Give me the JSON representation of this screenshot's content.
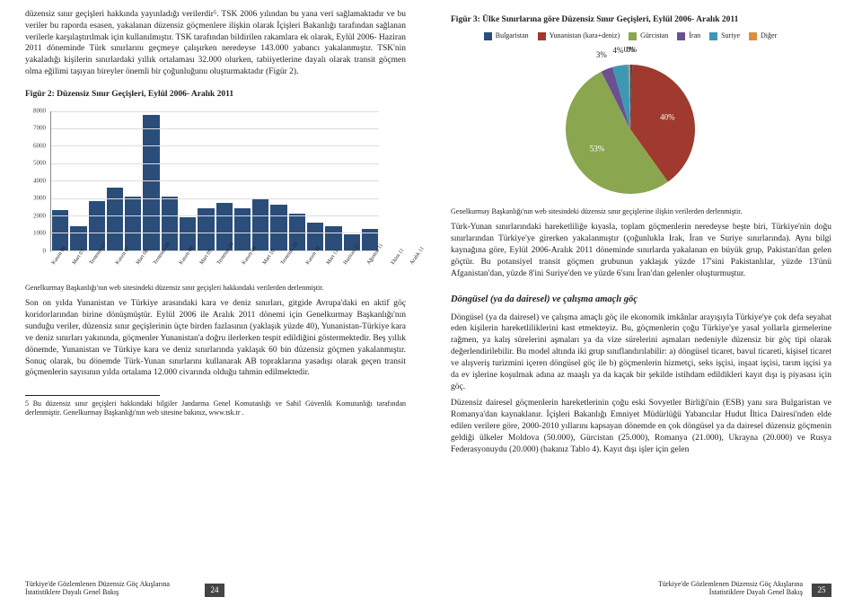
{
  "left": {
    "intro": "düzensiz sınır geçişleri hakkında yayınladığı verilerdir⁵. TSK 2006 yılından bu yana veri sağlamaktadır ve bu veriler bu raporda esasen, yakalanan düzensiz göçmenlere ilişkin olarak İçişleri Bakanlığı tarafından sağlanan verilerle karşılaştırılmak için kullanılmıştır. TSK tarafından bildirilen rakamlara ek olarak, Eylül 2006- Haziran 2011 döneminde Türk sınırlarını geçmeye çalışırken neredeyse 143.000 yabancı yakalanmıştır. TSK'nin yakaladığı kişilerin sınırlardaki yıllık ortalaması 32.000 olurken, tabiiyetlerine dayalı olarak transit göçmen olma eğilimi taşıyan bireyler önemli bir çoğunluğunu oluşturmaktadır (Figür 2).",
    "fig2_title": "Figür 2: Düzensiz Sınır Geçişleri, Eylül 2006- Aralık 2011",
    "chart_caption": "Genelkurmay Başkanlığı'nın web sitesindeki düzensiz sınır geçişleri hakkındaki verilerden derlenmiştir.",
    "para2": "Son on yılda Yunanistan ve Türkiye arasındaki kara ve deniz sınırları, gitgide Avrupa'daki en aktif göç koridorlarından birine dönüşmüştür. Eylül 2006 ile Aralık 2011 dönemi için Genelkurmay Başkanlığı'nın sunduğu veriler, düzensiz sınır geçişlerinin üçte birden fazlasının (yaklaşık yüzde 40), Yunanistan-Türkiye kara ve deniz sınırları yakınında, göçmenler Yunanistan'a doğru ilerlerken tespit edildiğini göstermektedir. Beş yıllık dönemde, Yunanistan ve Türkiye kara ve deniz sınırlarında yaklaşık 60 bin düzensiz göçmen yakalanmıştır. Sonuç olarak, bu dönemde Türk-Yunan sınırlarını kullanarak AB topraklarına yasadışı olarak geçen transit göçmenlerin sayısının yılda ortalama 12.000 civarında olduğu tahmin edilmektedir.",
    "footnote": "5 Bu düzensiz sınır geçişleri hakkındaki bilgiler Jandarma Genel Komutanlığı ve Sahil Güvenlik Komutanlığı tarafından derlenmiştir. Genelkurmay Başkanlığı'nın web sitesine bakınız, www.tsk.tr .",
    "footer_title": "Türkiye'de Gözlemlenen Düzensiz Göç Akışlarına İstatistiklere Dayalı Genel Bakış",
    "page_num": "24"
  },
  "right": {
    "fig3_title": "Figür 3: Ülke Sınırlarına göre Düzensiz Sınır Geçişleri, Eylül 2006- Aralık 2011",
    "pie_caption": "Genelkurmay Başkanlığı'nın web sitesindeki düzensiz sınır geçişlerine ilişkin verilerden derlenmiştir.",
    "para1": "Türk-Yunan sınırlarındaki hareketliliğe kıyasla, toplam göçmenlerin neredeyse beşte biri, Türkiye'nin doğu sınırlarından Türkiye'ye girerken yakalanmıştır (çoğunlukla Irak, İran ve Suriye sınırlarında). Aynı bilgi kaynağına göre, Eylül 2006-Aralık 2011 döneminde sınırlarda yakalanan en büyük grup, Pakistan'dan gelen göçtür. Bu potansiyel transit göçmen grubunun yaklaşık yüzde 17'sini Pakistanlılar, yüzde 13'ünü Afganistan'dan, yüzde 8'ini Suriye'den ve yüzde 6'sını İran'dan gelenler oluşturmuştur.",
    "section": "Döngüsel (ya da dairesel) ve çalışma amaçlı göç",
    "para2": "Döngüsel (ya da dairesel) ve çalışma amaçlı göç ile ekonomik imkânlar arayışıyla Türkiye'ye çok defa seyahat eden kişilerin hareketliliklerini kast etmekteyiz. Bu, göçmenlerin çoğu Türkiye'ye yasal yollarla girmelerine rağmen, ya kalış sürelerini aşmaları ya da vize sürelerini aşmaları nedeniyle düzensiz bir göç tipi olarak değerlendirilebilir. Bu model altında iki grup sınıflandırılabilir: a) döngüsel ticaret, bavul ticareti, kişisel ticaret ve alışveriş turizmini içeren döngüsel göç ile b) göçmenlerin hizmetçi, seks işçisi, inşaat işçisi, tarım işçisi ya da ev işlerine koşulmak adına az maaşlı ya da kaçak bir şekilde istihdam edildikleri kayıt dışı iş piyasası için göç.",
    "para3": "Düzensiz dairesel göçmenlerin hareketlerinin çoğu eski Sovyetler Birliği'nin (ESB) yanı sıra Bulgaristan ve Romanya'dan kaynaklanır. İçişleri Bakanlığı Emniyet Müdürlüğü Yabancılar Hudut İltica Dairesi'nden elde edilen verilere göre, 2000-2010 yıllarını kapsayan dönemde en çok döngüsel ya da dairesel düzensiz göçmenin geldiği ülkeler Moldova (50.000), Gürcistan (25.000), Romanya (21.000), Ukrayna (20.000) ve Rusya Federasyonuydu (20.000) (bakınız Tablo 4). Kayıt dışı işler için gelen",
    "footer_title": "Türkiye'de Gözlemlenen Düzensiz Göç Akışlarına İstatistiklere Dayalı Genel Bakış",
    "page_num": "25"
  },
  "bar_chart": {
    "type": "bar",
    "ylim": [
      0,
      8000
    ],
    "ytick_step": 1000,
    "bar_color": "#2a4d7a",
    "grid_color": "#dddddd",
    "axis_color": "#888888",
    "categories": [
      "Kasım 06",
      "Mart 07",
      "Temmuz 07",
      "Kasım 07",
      "Mart 08",
      "Temmuz 08",
      "Kasım 08",
      "Mart 09",
      "Temmuz 09",
      "Kasım 09",
      "Mart 10",
      "Temmuz 10",
      "Kasım 10",
      "Mart 11",
      "Haziran 11",
      "Ağustos 11",
      "Ekim 11",
      "Aralık 11"
    ],
    "values": [
      2300,
      1400,
      2800,
      3600,
      3100,
      7800,
      3100,
      1900,
      2400,
      2700,
      2400,
      3000,
      2600,
      2100,
      1600,
      1400,
      900,
      1200
    ]
  },
  "pie_chart": {
    "type": "pie",
    "legend": [
      {
        "label": "Bulgaristan",
        "color": "#2a4d7a"
      },
      {
        "label": "Yunanistan (kara+deniz)",
        "color": "#a0392e"
      },
      {
        "label": "Gürcistan",
        "color": "#8aa64f"
      },
      {
        "label": "İran",
        "color": "#6b5091"
      },
      {
        "label": "Suriye",
        "color": "#3d99b3"
      },
      {
        "label": "Diğer",
        "color": "#d88f3f"
      }
    ],
    "slices": [
      {
        "label": "0%",
        "value": 0.5,
        "color": "#2a4d7a",
        "text_color": "dark",
        "label_out": true
      },
      {
        "label": "40%",
        "value": 40,
        "color": "#a0392e",
        "text_color": "light"
      },
      {
        "label": "53%",
        "value": 53,
        "color": "#8aa64f",
        "text_color": "light"
      },
      {
        "label": "3%",
        "value": 3,
        "color": "#6b5091",
        "text_color": "dark",
        "label_out": true
      },
      {
        "label": "4%",
        "value": 4,
        "color": "#3d99b3",
        "text_color": "dark",
        "label_out": true
      },
      {
        "label": "0%",
        "value": 0.5,
        "color": "#d88f3f",
        "text_color": "dark",
        "label_out": true
      }
    ],
    "start_angle": -90
  }
}
